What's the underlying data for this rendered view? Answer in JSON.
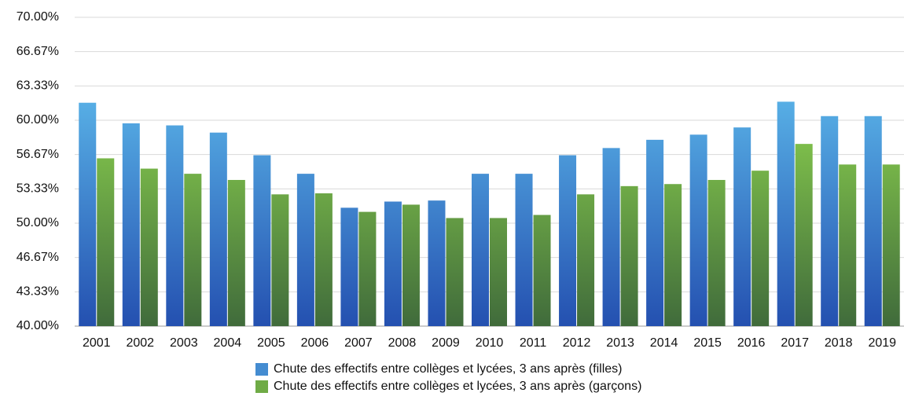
{
  "chart_data": {
    "type": "bar",
    "categories": [
      "2001",
      "2002",
      "2003",
      "2004",
      "2005",
      "2006",
      "2007",
      "2008",
      "2009",
      "2010",
      "2011",
      "2012",
      "2013",
      "2014",
      "2015",
      "2016",
      "2017",
      "2018",
      "2019"
    ],
    "series": [
      {
        "name": "Chute des effectifs entre collèges et lycées, 3 ans après (filles)",
        "color": "#5ab4e8",
        "values": [
          61.7,
          59.7,
          59.5,
          58.8,
          56.6,
          54.8,
          51.5,
          52.1,
          52.2,
          54.8,
          54.8,
          56.6,
          57.3,
          58.1,
          58.6,
          59.3,
          61.8,
          60.4,
          60.4
        ]
      },
      {
        "name": "Chute des effectifs entre collèges et lycées, 3 ans après (garçons)",
        "color": "#8fd64f",
        "values": [
          56.3,
          55.3,
          54.8,
          54.2,
          52.8,
          52.9,
          51.1,
          51.8,
          50.5,
          50.5,
          50.8,
          52.8,
          53.6,
          53.8,
          54.2,
          55.1,
          57.7,
          55.7,
          55.7
        ]
      }
    ],
    "ylim": [
      40,
      70
    ],
    "yticks": [
      {
        "value": 40,
        "label": "40.00%"
      },
      {
        "value": 43.33,
        "label": "43.33%"
      },
      {
        "value": 46.67,
        "label": "46.67%"
      },
      {
        "value": 50,
        "label": "50.00%"
      },
      {
        "value": 53.33,
        "label": "53.33%"
      },
      {
        "value": 56.67,
        "label": "56.67%"
      },
      {
        "value": 60,
        "label": "60.00%"
      },
      {
        "value": 63.33,
        "label": "63.33%"
      },
      {
        "value": 66.67,
        "label": "66.67%"
      },
      {
        "value": 70,
        "label": "70.00%"
      }
    ],
    "grid": true,
    "legend": "bottom"
  }
}
